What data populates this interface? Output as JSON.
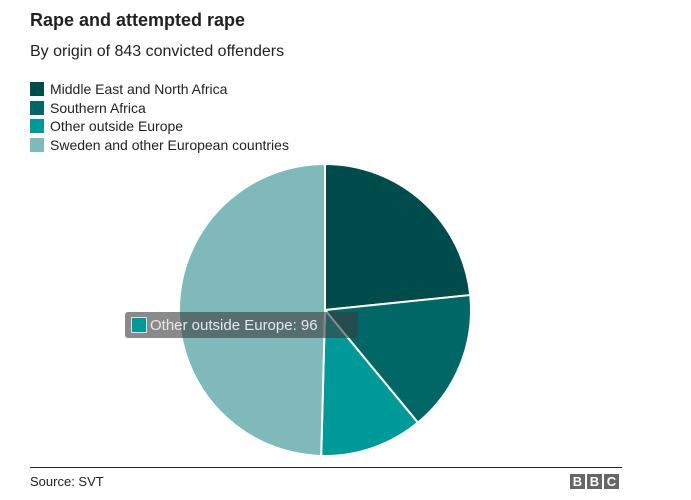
{
  "chart_data": {
    "type": "pie",
    "title": "Rape and attempted rape",
    "subtitle": "By origin of 843 convicted offenders",
    "total": 843,
    "legend_position": "top-left",
    "slices": [
      {
        "label": "Middle East and North Africa",
        "value": 197,
        "color": "#004b4b"
      },
      {
        "label": "Southern Africa",
        "value": 132,
        "color": "#006666"
      },
      {
        "label": "Other outside Europe",
        "value": 96,
        "color": "#009999"
      },
      {
        "label": "Sweden and other European countries",
        "value": 418,
        "color": "#7fb9b9"
      }
    ],
    "tooltip": {
      "text": "Other outside Europe: 96",
      "color": "#009999"
    }
  },
  "footer": {
    "source": "Source: SVT",
    "logo": [
      "B",
      "B",
      "C"
    ]
  }
}
